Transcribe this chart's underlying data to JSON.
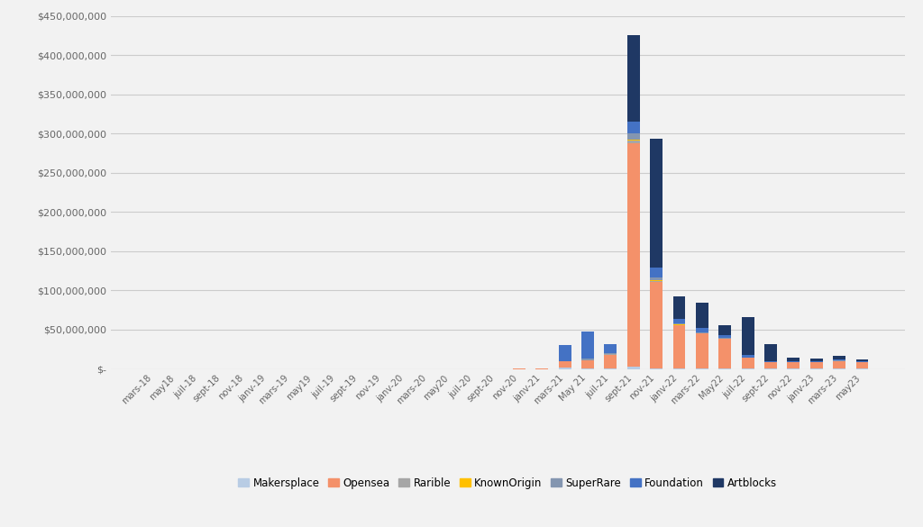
{
  "background_color": "#f2f2f2",
  "plot_bg_color": "#f2f2f2",
  "grid_color": "#cccccc",
  "categories": [
    "mars-18",
    "may18",
    "juil-18",
    "sept-18",
    "nov-18",
    "janv-19",
    "mars-19",
    "may19",
    "juil-19",
    "sept-19",
    "nov-19",
    "janv-20",
    "mars-20",
    "may20",
    "juil-20",
    "sept-20",
    "nov-20",
    "janv-21",
    "mars-21",
    "May 21",
    "juil-21",
    "sept-21",
    "nov-21",
    "janv-22",
    "mars-22",
    "May22",
    "juil-22",
    "sept-22",
    "nov-22",
    "janv-23",
    "mars-23",
    "may23"
  ],
  "series": {
    "Makersplace": [
      0,
      0,
      0,
      0,
      0,
      0,
      0,
      0,
      0,
      0,
      0,
      0,
      0,
      0,
      0,
      0,
      0,
      0,
      1500000,
      500000,
      200000,
      3000000,
      1000000,
      500000,
      300000,
      100000,
      100000,
      50000,
      50000,
      50000,
      50000,
      50000
    ],
    "Opensea": [
      0,
      0,
      0,
      0,
      0,
      0,
      0,
      0,
      0,
      0,
      0,
      0,
      0,
      0,
      0,
      0,
      200000,
      500000,
      8000000,
      10000000,
      18000000,
      285000000,
      110000000,
      55000000,
      45000000,
      38000000,
      14000000,
      8000000,
      8000000,
      8000000,
      10000000,
      8000000
    ],
    "Rarible": [
      0,
      0,
      0,
      0,
      0,
      0,
      0,
      0,
      0,
      0,
      0,
      0,
      0,
      0,
      0,
      0,
      0,
      0,
      300000,
      300000,
      300000,
      3000000,
      1500000,
      700000,
      400000,
      150000,
      80000,
      80000,
      80000,
      80000,
      80000,
      0
    ],
    "KnownOrigin": [
      0,
      0,
      0,
      0,
      0,
      0,
      0,
      0,
      0,
      0,
      0,
      0,
      0,
      0,
      0,
      0,
      0,
      0,
      0,
      0,
      0,
      1500000,
      400000,
      150000,
      80000,
      80000,
      0,
      0,
      0,
      0,
      0,
      0
    ],
    "SuperRare": [
      0,
      0,
      0,
      0,
      0,
      0,
      0,
      0,
      0,
      0,
      0,
      0,
      0,
      0,
      0,
      0,
      0,
      0,
      400000,
      2000000,
      1500000,
      8000000,
      4000000,
      1500000,
      1200000,
      800000,
      400000,
      250000,
      250000,
      250000,
      300000,
      200000
    ],
    "Foundation": [
      0,
      0,
      0,
      0,
      0,
      0,
      0,
      0,
      0,
      0,
      0,
      0,
      0,
      0,
      0,
      0,
      0,
      0,
      20000000,
      35000000,
      12000000,
      15000000,
      12000000,
      6000000,
      5000000,
      4000000,
      3000000,
      1500000,
      1500000,
      1500000,
      2000000,
      1500000
    ],
    "Artblocks": [
      0,
      0,
      0,
      0,
      0,
      0,
      0,
      0,
      0,
      0,
      0,
      0,
      0,
      0,
      0,
      0,
      0,
      0,
      0,
      0,
      0,
      110000000,
      165000000,
      28000000,
      32000000,
      13000000,
      48000000,
      22000000,
      4000000,
      3500000,
      4500000,
      1800000
    ]
  },
  "colors": {
    "Makersplace": "#b8cce4",
    "Opensea": "#f4916a",
    "Rarible": "#a6a6a6",
    "KnownOrigin": "#ffc000",
    "SuperRare": "#8496b0",
    "Foundation": "#4472c4",
    "Artblocks": "#1f3864"
  },
  "ylim": [
    0,
    450000000
  ],
  "yticks": [
    0,
    50000000,
    100000000,
    150000000,
    200000000,
    250000000,
    300000000,
    350000000,
    400000000,
    450000000
  ]
}
